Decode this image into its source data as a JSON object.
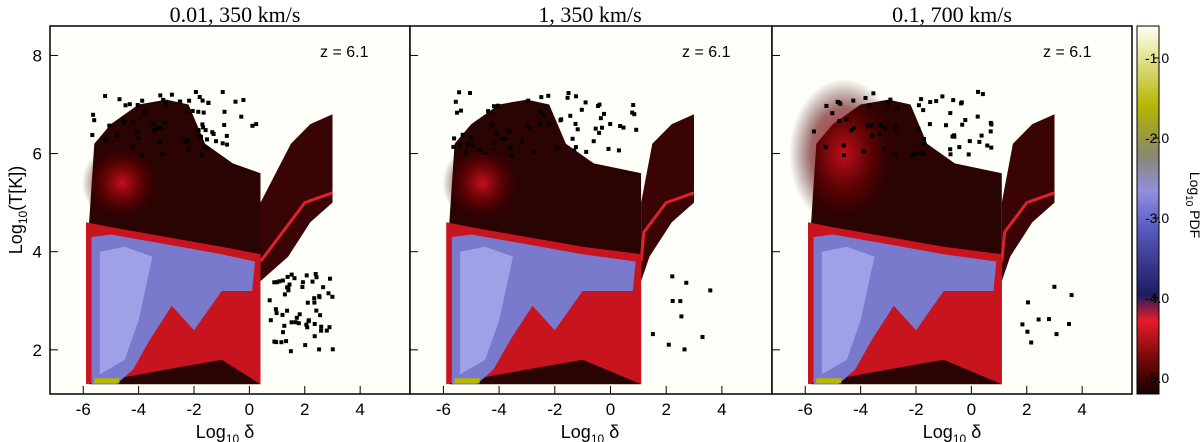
{
  "chart_data": [
    {
      "type": "heatmap",
      "title": "0.01, 350 km/s",
      "annotation": "z =  6.1",
      "xlabel_base": "Log",
      "xlabel_sub": "10",
      "xlabel_var": " δ",
      "ylabel_base": "Log",
      "ylabel_sub": "10",
      "ylabel_var": "(T[K])",
      "xlim": [
        -7.2,
        5.8
      ],
      "ylim": [
        1.1,
        8.6
      ],
      "xticks": [
        "-6",
        "-4",
        "-2",
        "0",
        "2",
        "4"
      ],
      "xtick_values": [
        -6,
        -4,
        -2,
        0,
        2,
        4
      ],
      "yticks": [
        "2",
        "4",
        "6",
        "8"
      ],
      "ytick_values": [
        2,
        4,
        6,
        8
      ],
      "show_yticklabels": true,
      "cutoff_delta": 0.4
    },
    {
      "type": "heatmap",
      "title": "1, 350 km/s",
      "annotation": "z =  6.1",
      "xlabel_base": "Log",
      "xlabel_sub": "10",
      "xlabel_var": " δ",
      "xlim": [
        -7.2,
        5.8
      ],
      "ylim": [
        1.1,
        8.6
      ],
      "xticks": [
        "-6",
        "-4",
        "-2",
        "0",
        "2",
        "4"
      ],
      "xtick_values": [
        -6,
        -4,
        -2,
        0,
        2,
        4
      ],
      "yticks": [
        "2",
        "4",
        "6",
        "8"
      ],
      "ytick_values": [
        2,
        4,
        6,
        8
      ],
      "show_yticklabels": false,
      "cutoff_delta": 1.1
    },
    {
      "type": "heatmap",
      "title": "0.1, 700 km/s",
      "annotation": "z =  6.1",
      "xlabel_base": "Log",
      "xlabel_sub": "10",
      "xlabel_var": " δ",
      "xlim": [
        -7.2,
        5.8
      ],
      "ylim": [
        1.1,
        8.6
      ],
      "xticks": [
        "-6",
        "-4",
        "-2",
        "0",
        "2",
        "4"
      ],
      "xtick_values": [
        -6,
        -4,
        -2,
        0,
        2,
        4
      ],
      "yticks": [
        "2",
        "4",
        "6",
        "8"
      ],
      "ytick_values": [
        2,
        4,
        6,
        8
      ],
      "show_yticklabels": false,
      "cutoff_delta": 1.1
    }
  ],
  "colorbar": {
    "label_base": "Log",
    "label_sub": "10",
    "label_var": " PDF",
    "range": [
      -5.2,
      -0.6
    ],
    "ticks": [
      "-1.0",
      "-2.0",
      "-3.0",
      "-4.0",
      "-5.0"
    ],
    "tick_values": [
      -1.0,
      -2.0,
      -3.0,
      -4.0,
      -5.0
    ],
    "colors": [
      "#1a0000",
      "#7a0a0a",
      "#e81c2a",
      "#181a5a",
      "#4a4ab0",
      "#8f8fe0",
      "#9a9a60",
      "#b8b800",
      "#fffff0"
    ]
  }
}
